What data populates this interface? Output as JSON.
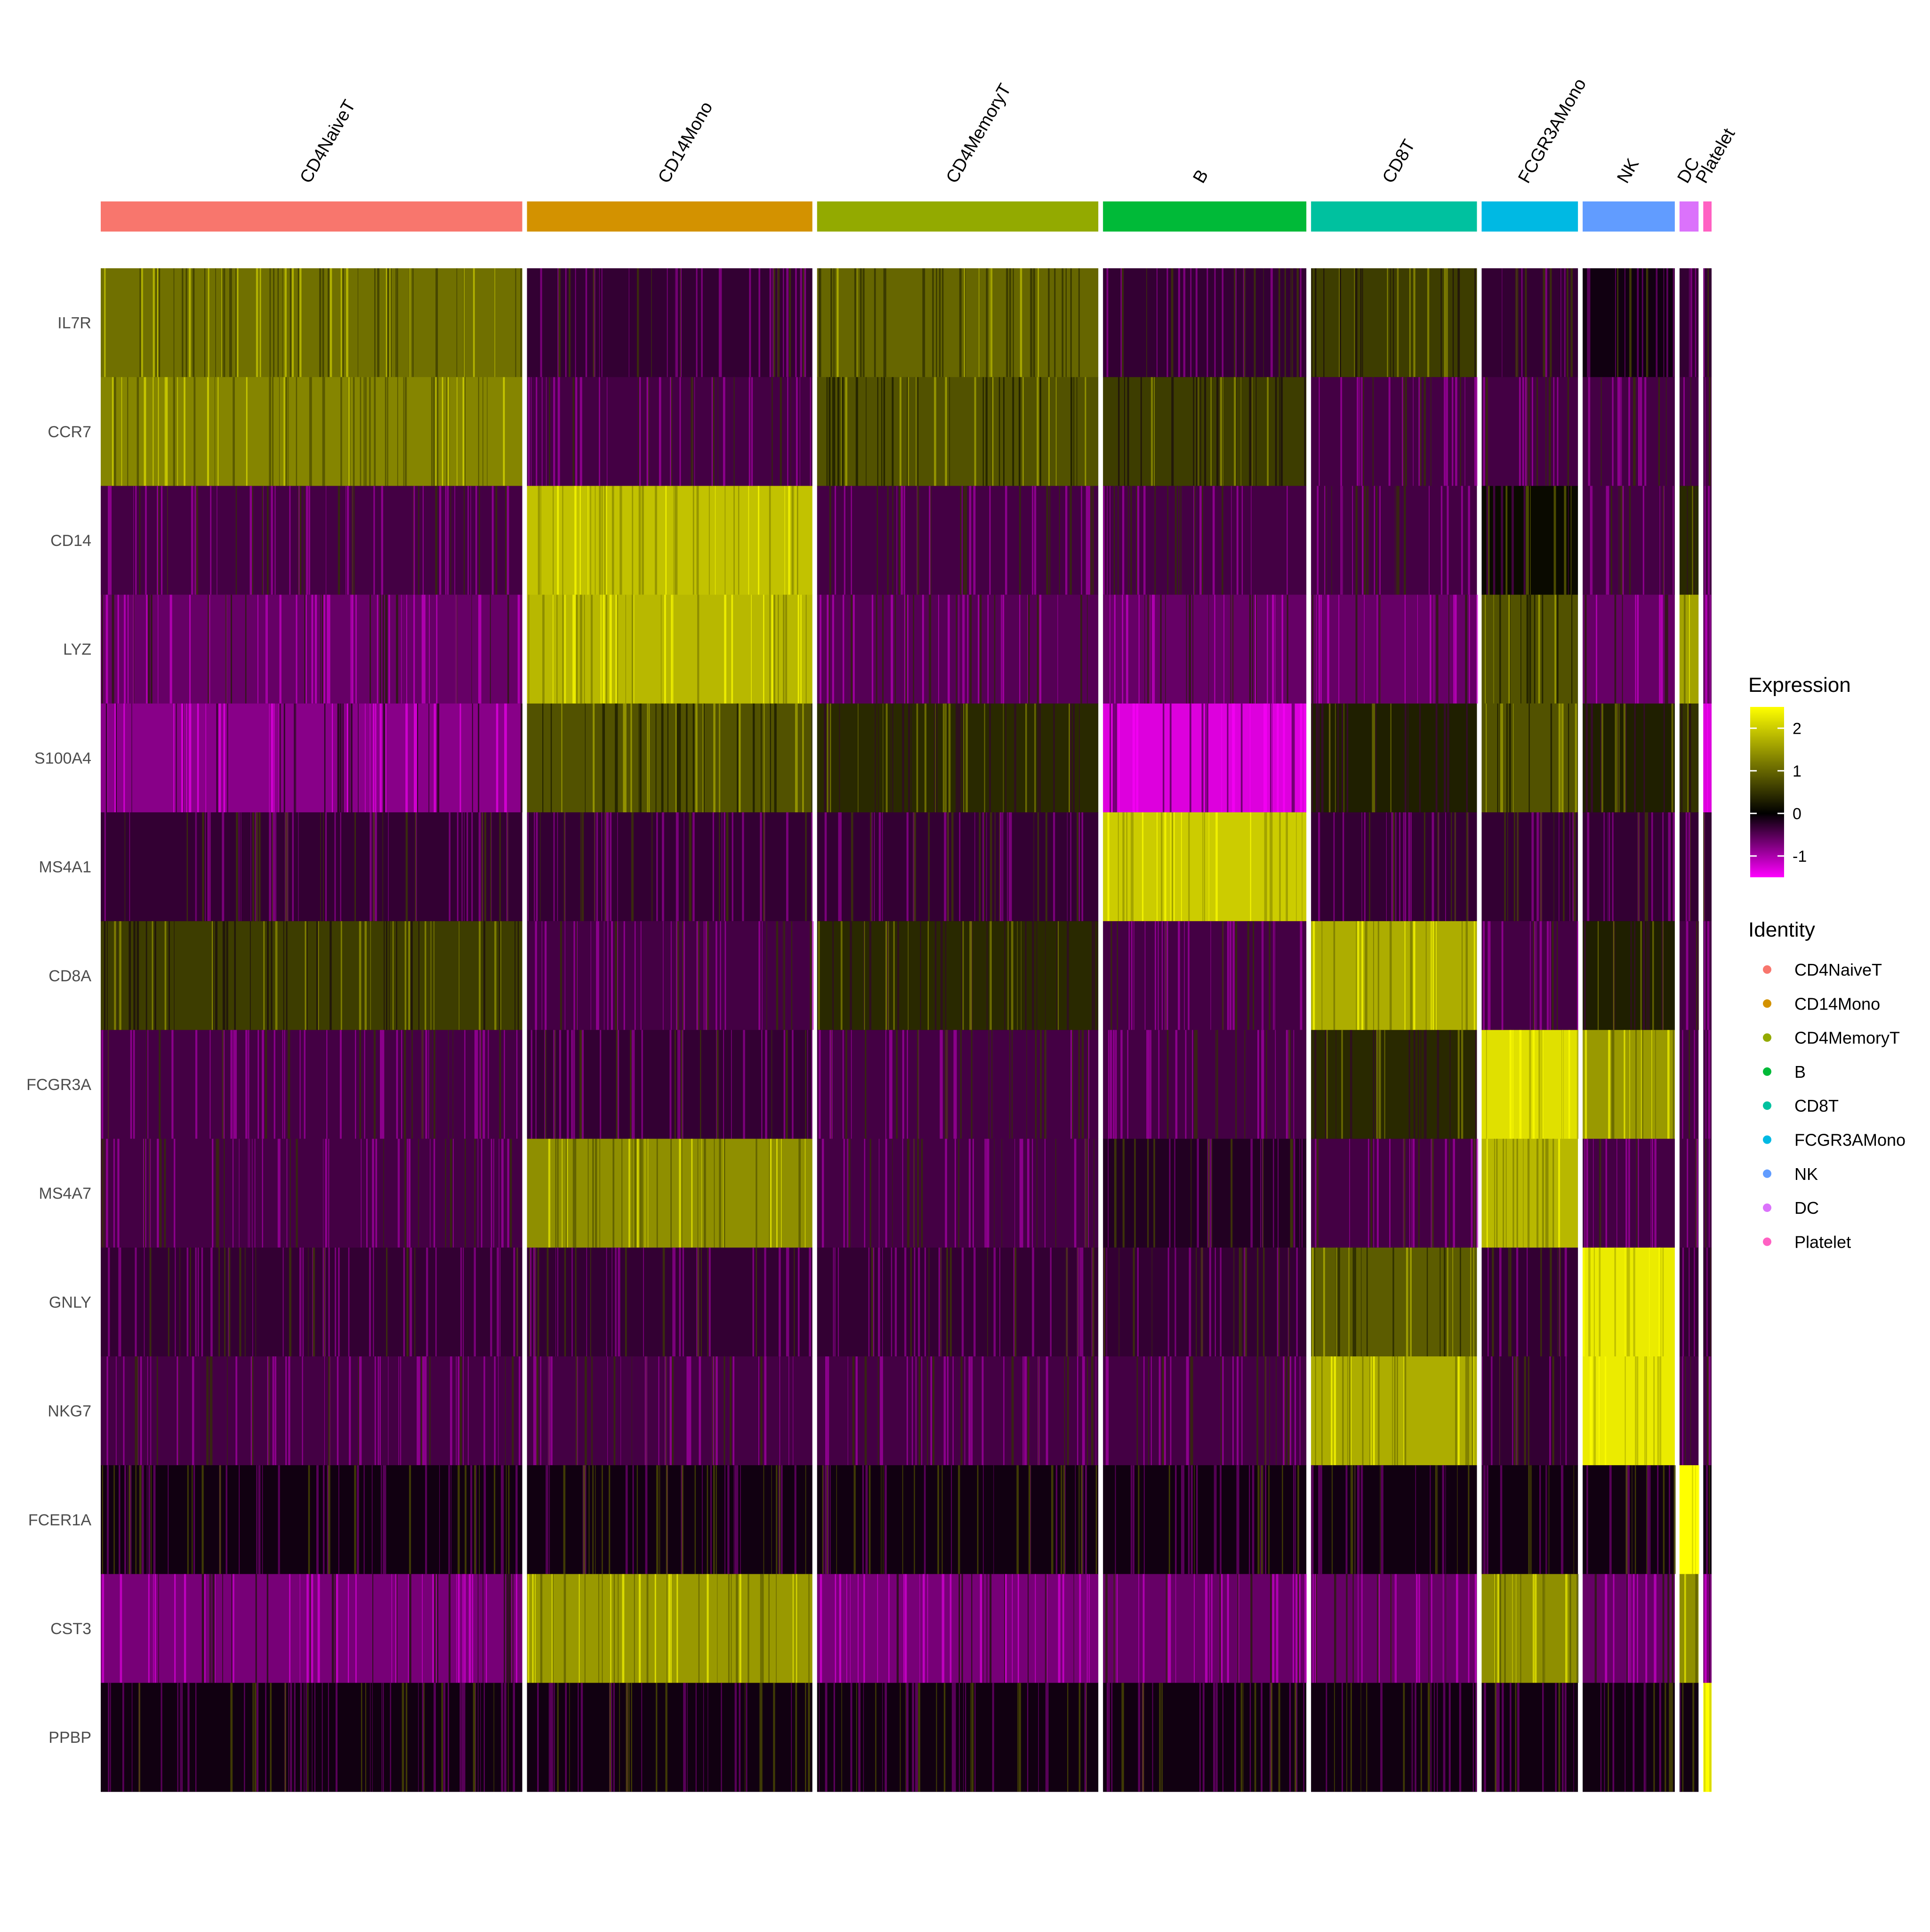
{
  "chart_data": {
    "type": "heatmap",
    "genes": [
      "IL7R",
      "CCR7",
      "CD14",
      "LYZ",
      "S100A4",
      "MS4A1",
      "CD8A",
      "FCGR3A",
      "MS4A7",
      "GNLY",
      "NKG7",
      "FCER1A",
      "CST3",
      "PPBP"
    ],
    "clusters": [
      {
        "name": "CD4NaiveT",
        "cells": 709,
        "color": "#F8766D"
      },
      {
        "name": "CD14Mono",
        "cells": 480,
        "color": "#D39200"
      },
      {
        "name": "CD4MemoryT",
        "cells": 473,
        "color": "#93AA00"
      },
      {
        "name": "B",
        "cells": 342,
        "color": "#00BA38"
      },
      {
        "name": "CD8T",
        "cells": 279,
        "color": "#00C19F"
      },
      {
        "name": "FCGR3AMono",
        "cells": 162,
        "color": "#00B9E3"
      },
      {
        "name": "NK",
        "cells": 155,
        "color": "#619CFF"
      },
      {
        "name": "DC",
        "cells": 32,
        "color": "#DB72FB"
      },
      {
        "name": "Platelet",
        "cells": 14,
        "color": "#FF61C3"
      }
    ],
    "mean_expression": [
      [
        1.1,
        -0.3,
        1.0,
        -0.3,
        0.6,
        -0.3,
        -0.1,
        -0.3,
        -0.3
      ],
      [
        1.3,
        -0.4,
        0.8,
        0.6,
        -0.4,
        -0.4,
        -0.4,
        -0.4,
        -0.4
      ],
      [
        -0.4,
        1.9,
        -0.4,
        -0.4,
        -0.4,
        0.1,
        -0.4,
        0.4,
        -0.4
      ],
      [
        -0.6,
        1.8,
        -0.5,
        -0.6,
        -0.6,
        0.8,
        -0.6,
        1.6,
        -0.6
      ],
      [
        -0.8,
        0.8,
        0.4,
        -1.3,
        0.3,
        0.8,
        0.3,
        0.5,
        -1.3
      ],
      [
        -0.3,
        -0.3,
        -0.3,
        2.0,
        -0.3,
        -0.3,
        -0.3,
        -0.3,
        -0.3
      ],
      [
        0.6,
        -0.4,
        0.4,
        -0.4,
        1.7,
        -0.4,
        0.3,
        -0.4,
        -0.4
      ],
      [
        -0.4,
        -0.3,
        -0.4,
        -0.4,
        0.4,
        2.2,
        1.5,
        -0.4,
        -0.4
      ],
      [
        -0.4,
        1.4,
        -0.4,
        -0.2,
        -0.4,
        1.8,
        -0.4,
        -0.4,
        -0.4
      ],
      [
        -0.3,
        -0.3,
        -0.3,
        -0.3,
        0.9,
        -0.3,
        2.3,
        -0.3,
        -0.3
      ],
      [
        -0.4,
        -0.4,
        -0.4,
        -0.4,
        1.7,
        -0.3,
        2.3,
        -0.4,
        -0.4
      ],
      [
        -0.1,
        -0.1,
        -0.1,
        -0.1,
        -0.1,
        -0.1,
        -0.1,
        2.6,
        -0.1
      ],
      [
        -0.7,
        1.5,
        -0.7,
        -0.6,
        -0.6,
        1.4,
        -0.6,
        1.4,
        -0.7
      ],
      [
        -0.1,
        -0.1,
        -0.1,
        -0.1,
        -0.1,
        -0.1,
        -0.1,
        -0.1,
        2.6
      ]
    ],
    "color_scale": {
      "title": "Expression",
      "low_color": "#FF00FF",
      "mid_color": "#000000",
      "high_color": "#FFFF00",
      "range": [
        -1.5,
        2.5
      ],
      "ticks": [
        2,
        1,
        0,
        -1
      ]
    },
    "legend": {
      "title": "Identity",
      "placement": "right"
    },
    "grid": false
  }
}
